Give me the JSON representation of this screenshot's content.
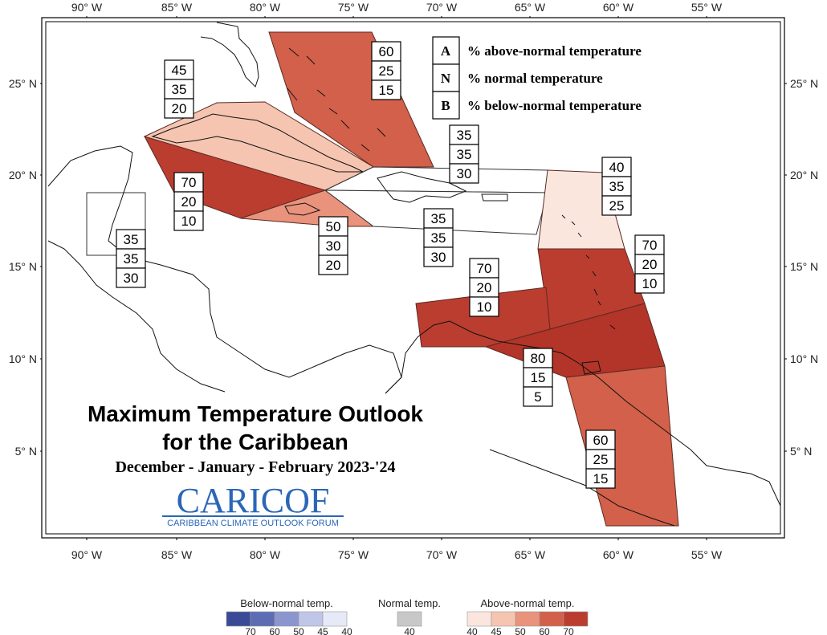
{
  "map": {
    "lon_ticks": [
      "90° W",
      "85° W",
      "80° W",
      "75° W",
      "70° W",
      "65° W",
      "60° W",
      "55° W"
    ],
    "lat_ticks": [
      "25° N",
      "20° N",
      "15° N",
      "10° N",
      "5° N"
    ]
  },
  "key": {
    "items": [
      {
        "letter": "A",
        "text": "% above-normal temperature"
      },
      {
        "letter": "N",
        "text": "% normal temperature"
      },
      {
        "letter": "B",
        "text": "% below-normal temperature"
      }
    ]
  },
  "title": {
    "line1": "Maximum Temperature Outlook",
    "line2": "for the Caribbean",
    "line3": "December - January - February 2023-'24"
  },
  "logo": {
    "name": "CARICOF",
    "tagline": "CARIBBEAN CLIMATE OUTLOOK FORUM"
  },
  "regions": [
    {
      "id": "bahamas",
      "fill": "#d2604a",
      "probs": [
        "60",
        "25",
        "15"
      ]
    },
    {
      "id": "cuba",
      "fill": "#f5c5b2",
      "probs": [
        "45",
        "35",
        "20"
      ]
    },
    {
      "id": "cayman-west-cuba",
      "fill": "#bb3d30",
      "probs": [
        "70",
        "20",
        "10"
      ]
    },
    {
      "id": "jamaica",
      "fill": "#e9927c",
      "probs": [
        "50",
        "30",
        "20"
      ]
    },
    {
      "id": "turks-caicos",
      "fill": "#ffffff",
      "probs": [
        "35",
        "35",
        "30"
      ]
    },
    {
      "id": "hispaniola-pr",
      "fill": "#ffffff",
      "probs": [
        "35",
        "35",
        "30"
      ]
    },
    {
      "id": "belize",
      "fill": "#ffffff",
      "probs": [
        "35",
        "35",
        "30"
      ]
    },
    {
      "id": "leeward-islands",
      "fill": "#fbe6de",
      "probs": [
        "40",
        "35",
        "25"
      ]
    },
    {
      "id": "windward-islands",
      "fill": "#bb3d30",
      "probs": [
        "70",
        "20",
        "10"
      ]
    },
    {
      "id": "abc-islands",
      "fill": "#bb3d30",
      "probs": [
        "70",
        "20",
        "10"
      ]
    },
    {
      "id": "trinidad-barbados",
      "fill": "#b33428",
      "probs": [
        "80",
        "15",
        "5"
      ]
    },
    {
      "id": "guianas",
      "fill": "#d2604a",
      "probs": [
        "60",
        "25",
        "15"
      ]
    }
  ],
  "legend": {
    "below": {
      "title": "Below-normal temp.",
      "ticks": [
        "70",
        "60",
        "50",
        "45",
        "40"
      ],
      "colors": [
        "#3a4a96",
        "#5e6cb3",
        "#8b96cf",
        "#bfc6e8",
        "#e6e9f7"
      ]
    },
    "normal": {
      "title": "Normal temp.",
      "ticks": [
        "40"
      ],
      "colors": [
        "#c8c8c8"
      ]
    },
    "above": {
      "title": "Above-normal temp.",
      "ticks": [
        "40",
        "45",
        "50",
        "60",
        "70"
      ],
      "colors": [
        "#fbe6de",
        "#f5c5b2",
        "#e9927c",
        "#d2604a",
        "#bb3d30"
      ]
    }
  }
}
